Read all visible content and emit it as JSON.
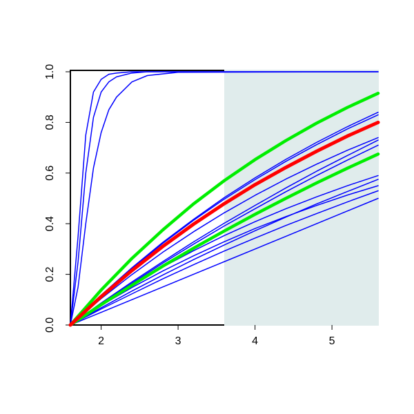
{
  "chart_data": {
    "type": "line",
    "x": [
      1.6,
      2.0,
      2.4,
      2.8,
      3.2,
      3.6,
      4.0,
      4.4,
      4.8,
      5.2,
      5.6
    ],
    "xlim": [
      1.6,
      5.6
    ],
    "ylim": [
      0,
      1
    ],
    "xticks": [
      2,
      3,
      4,
      5
    ],
    "yticks": [
      {
        "value": 0,
        "label": "0.0"
      },
      0.2,
      0.4,
      0.6,
      0.8,
      {
        "value": 1,
        "label": "1.0"
      }
    ],
    "shade": {
      "from": 3.6,
      "to": 5.6,
      "color": "#e0ecec"
    },
    "series": [
      {
        "color": "#0000ff",
        "width": 1.5,
        "x": [
          1.6,
          1.7,
          1.8,
          1.9,
          2.0,
          2.1,
          2.2,
          2.4,
          2.6,
          3.0,
          5.6
        ],
        "values": [
          0,
          0.35,
          0.75,
          0.92,
          0.97,
          0.99,
          0.995,
          1,
          1,
          1,
          1
        ]
      },
      {
        "color": "#0000ff",
        "width": 1.5,
        "x": [
          1.6,
          1.7,
          1.8,
          1.9,
          2.0,
          2.1,
          2.2,
          2.4,
          2.6,
          3.0,
          5.6
        ],
        "values": [
          0,
          0.25,
          0.6,
          0.82,
          0.92,
          0.96,
          0.98,
          0.995,
          1,
          1,
          1
        ]
      },
      {
        "color": "#0000ff",
        "width": 1.5,
        "x": [
          1.6,
          1.7,
          1.8,
          1.9,
          2.0,
          2.1,
          2.2,
          2.4,
          2.6,
          3.0,
          5.6
        ],
        "values": [
          0,
          0.15,
          0.4,
          0.62,
          0.76,
          0.85,
          0.9,
          0.96,
          0.985,
          0.998,
          1
        ]
      },
      {
        "color": "#0000ff",
        "width": 1.5,
        "values": [
          0,
          0.118,
          0.226,
          0.326,
          0.417,
          0.503,
          0.581,
          0.654,
          0.721,
          0.783,
          0.84
        ]
      },
      {
        "color": "#0000ff",
        "width": 1.5,
        "values": [
          0,
          0.116,
          0.223,
          0.322,
          0.413,
          0.497,
          0.574,
          0.646,
          0.712,
          0.774,
          0.83
        ]
      },
      {
        "color": "#0000ff",
        "width": 1.5,
        "values": [
          0,
          0.104,
          0.199,
          0.287,
          0.368,
          0.443,
          0.512,
          0.576,
          0.635,
          0.69,
          0.74
        ]
      },
      {
        "color": "#0000ff",
        "width": 1.5,
        "values": [
          0,
          0.087,
          0.17,
          0.25,
          0.328,
          0.402,
          0.472,
          0.541,
          0.607,
          0.669,
          0.73
        ]
      },
      {
        "color": "#0000ff",
        "width": 1.5,
        "values": [
          0,
          0.084,
          0.165,
          0.244,
          0.319,
          0.391,
          0.459,
          0.526,
          0.59,
          0.651,
          0.71
        ]
      },
      {
        "color": "#0000ff",
        "width": 1.5,
        "values": [
          0,
          0.083,
          0.159,
          0.229,
          0.293,
          0.353,
          0.408,
          0.459,
          0.506,
          0.55,
          0.59
        ]
      },
      {
        "color": "#0000ff",
        "width": 1.5,
        "values": [
          0,
          0.068,
          0.134,
          0.197,
          0.258,
          0.316,
          0.372,
          0.426,
          0.478,
          0.527,
          0.575
        ]
      },
      {
        "color": "#0000ff",
        "width": 1.5,
        "values": [
          0,
          0.077,
          0.148,
          0.213,
          0.273,
          0.329,
          0.381,
          0.428,
          0.472,
          0.513,
          0.55
        ]
      },
      {
        "color": "#0000ff",
        "width": 1.5,
        "values": [
          0,
          0.063,
          0.123,
          0.182,
          0.238,
          0.292,
          0.343,
          0.393,
          0.44,
          0.486,
          0.53
        ]
      },
      {
        "color": "#0000ff",
        "width": 1.5,
        "values": [
          0,
          0.05,
          0.1,
          0.15,
          0.2,
          0.25,
          0.3,
          0.35,
          0.4,
          0.45,
          0.5
        ]
      },
      {
        "color": "#00ee00",
        "width": 4.5,
        "values": [
          0,
          0.138,
          0.263,
          0.375,
          0.478,
          0.57,
          0.653,
          0.728,
          0.797,
          0.859,
          0.915
        ]
      },
      {
        "color": "#00ee00",
        "width": 4.5,
        "values": [
          0,
          0.08,
          0.157,
          0.232,
          0.303,
          0.371,
          0.437,
          0.5,
          0.561,
          0.619,
          0.675
        ]
      },
      {
        "color": "#ff0000",
        "width": 5,
        "values": [
          0,
          0.112,
          0.215,
          0.31,
          0.398,
          0.479,
          0.554,
          0.622,
          0.686,
          0.746,
          0.8
        ]
      }
    ]
  }
}
